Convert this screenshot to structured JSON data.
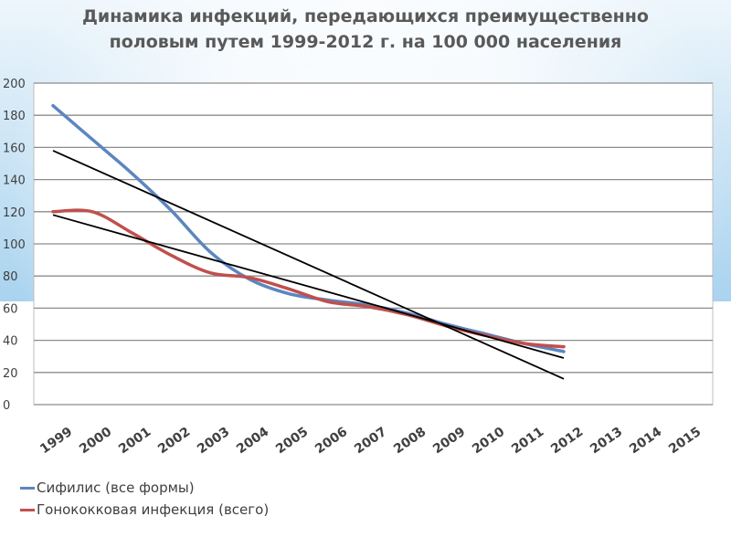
{
  "slide": {
    "title_line1": "Динамика инфекций, передающихся преимущественно",
    "title_line2": "половым путем 1999-2012 г. на 100 000 населения"
  },
  "legend": [
    {
      "label": "Сифилис (все формы)",
      "color": "#5b86c0"
    },
    {
      "label": "Гонококковая инфекция (всего)",
      "color": "#c0504d"
    }
  ],
  "chart_data": {
    "type": "line",
    "categories": [
      "1999",
      "2000",
      "2001",
      "2002",
      "2003",
      "2004",
      "2005",
      "2006",
      "2007",
      "2008",
      "2009",
      "2010",
      "2011",
      "2012",
      "2013",
      "2014",
      "2015"
    ],
    "ylim": [
      0,
      200
    ],
    "yticks": [
      0,
      20,
      40,
      60,
      80,
      100,
      120,
      140,
      160,
      180,
      200
    ],
    "grid": true,
    "legend_position": "bottom-left",
    "series": [
      {
        "name": "Сифилис (все формы)",
        "color": "#5b86c0",
        "values": [
          186,
          165,
          144,
          121,
          95,
          78,
          69,
          65,
          62,
          57,
          50,
          44,
          38,
          33,
          null,
          null,
          null
        ]
      },
      {
        "name": "Гонококковая инфекция (всего)",
        "color": "#c0504d",
        "values": [
          120,
          120,
          107,
          93,
          82,
          79,
          72,
          64,
          61,
          56,
          49,
          43,
          38,
          36,
          null,
          null,
          null
        ]
      }
    ],
    "trendlines": [
      {
        "start": 158,
        "end": 16,
        "color": "#000000"
      },
      {
        "start": 118,
        "end": 29,
        "color": "#000000"
      }
    ]
  }
}
